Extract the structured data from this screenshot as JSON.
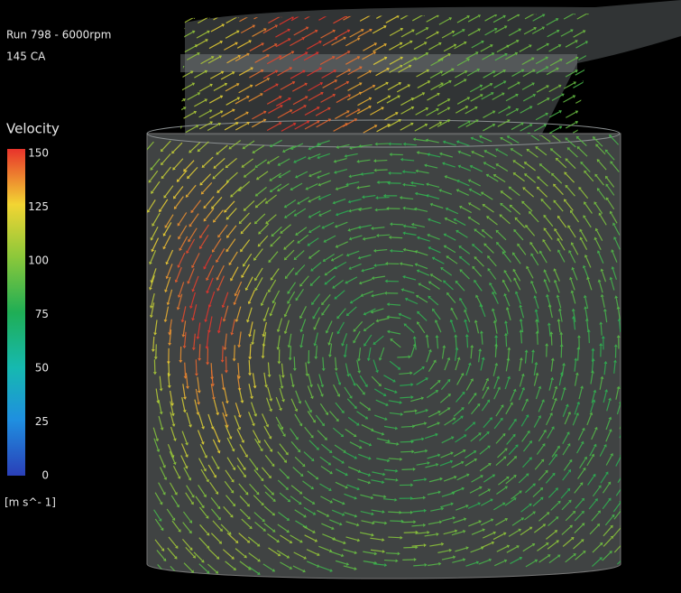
{
  "header": {
    "run": "Run 798  -  6000rpm",
    "angle": "145 CA"
  },
  "colorbar": {
    "title": "Velocity",
    "lim": [
      0,
      150
    ],
    "ticks": [
      150,
      125,
      100,
      75,
      50,
      25,
      0
    ],
    "unit": "[m  s^- 1]"
  }
}
